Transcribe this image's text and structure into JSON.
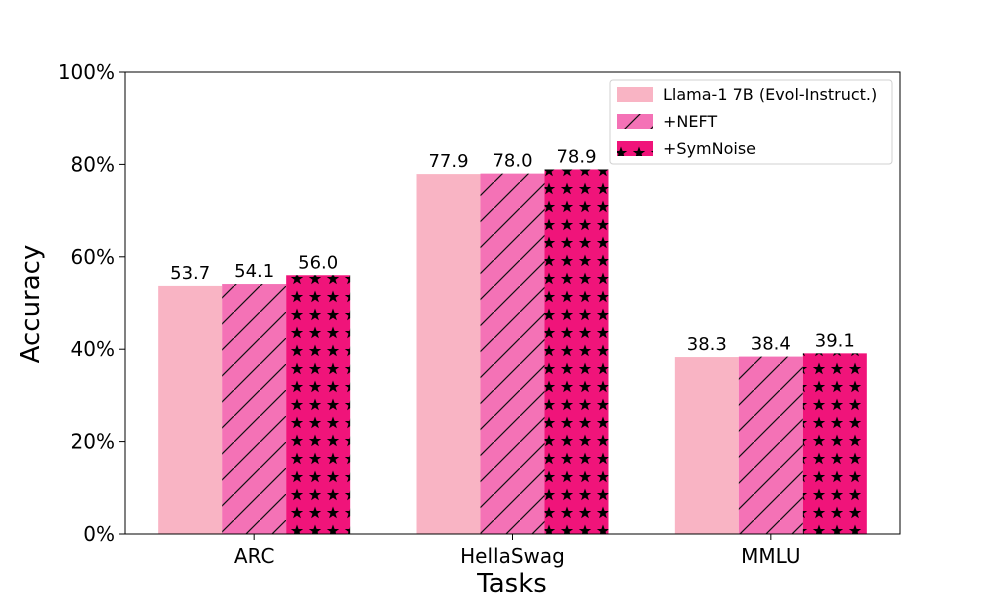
{
  "chart_data": {
    "type": "bar",
    "title": "",
    "xlabel": "Tasks",
    "ylabel": "Accuracy",
    "ylim": [
      0,
      100
    ],
    "yticks": [
      0,
      20,
      40,
      60,
      80,
      100
    ],
    "ytick_labels": [
      "0%",
      "20%",
      "40%",
      "60%",
      "80%",
      "100%"
    ],
    "categories": [
      "ARC",
      "HellaSwag",
      "MMLU"
    ],
    "series": [
      {
        "name": "Llama-1 7B (Evol-Instruct.)",
        "values": [
          53.7,
          77.9,
          38.3
        ],
        "labels": [
          "53.7",
          "77.9",
          "38.3"
        ],
        "color": "#f9b4c4",
        "pattern": "solid"
      },
      {
        "name": "+NEFT",
        "values": [
          54.1,
          78.0,
          38.4
        ],
        "labels": [
          "54.1",
          "78.0",
          "38.4"
        ],
        "color": "#f472b6",
        "pattern": "hatch"
      },
      {
        "name": "+SymNoise",
        "values": [
          56.0,
          78.9,
          39.1
        ],
        "labels": [
          "56.0",
          "78.9",
          "39.1"
        ],
        "color": "#f0147a",
        "pattern": "stars"
      }
    ],
    "legend_position": "top-right",
    "grid": false
  }
}
